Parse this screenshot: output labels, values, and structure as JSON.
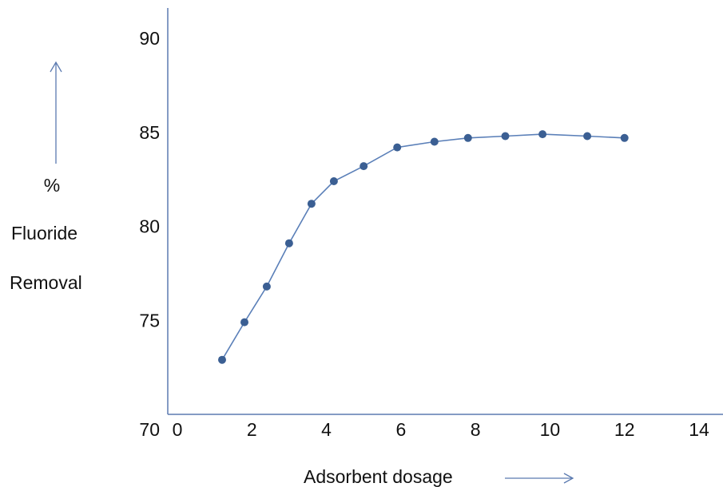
{
  "chart_data": {
    "type": "line",
    "title": "",
    "xlabel": "Adsorbent dosage",
    "ylabel_lines": [
      "%",
      "Fluoride",
      "Removal"
    ],
    "x_ticks": [
      "0",
      "2",
      "4",
      "6",
      "8",
      "10",
      "12",
      "14"
    ],
    "x_tick_values": [
      0,
      2,
      4,
      6,
      8,
      10,
      12,
      14
    ],
    "y_ticks": [
      "70",
      "75",
      "80",
      "85",
      "90"
    ],
    "y_tick_values": [
      70,
      75,
      80,
      85,
      90
    ],
    "xlim": [
      0,
      14
    ],
    "ylim": [
      70,
      90
    ],
    "grid": false,
    "series": [
      {
        "x": [
          1.2,
          1.8,
          2.4,
          3.0,
          3.6,
          4.2,
          5.0,
          5.9,
          6.9,
          7.8,
          8.8,
          9.8,
          11.0,
          12.0
        ],
        "y": [
          72.9,
          74.9,
          76.8,
          79.1,
          81.2,
          82.4,
          83.2,
          84.2,
          84.5,
          84.7,
          84.8,
          84.9,
          84.8,
          84.7
        ]
      }
    ],
    "colors": {
      "line": "#5a7fb8",
      "marker": "#3b5f93",
      "axis": "#5b7ab0",
      "arrow": "#5b7ab0"
    }
  }
}
